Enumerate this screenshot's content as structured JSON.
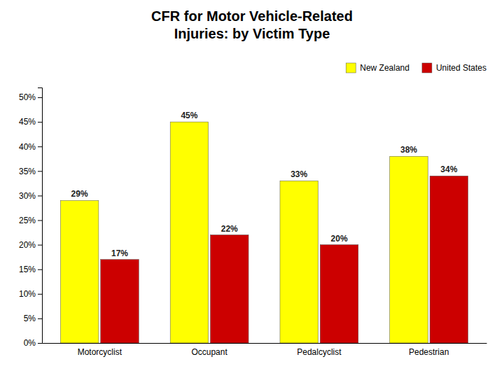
{
  "chart_data": {
    "type": "bar",
    "title": "CFR for Motor Vehicle-Related\nInjuries: by Victim Type",
    "categories": [
      "Motorcyclist",
      "Occupant",
      "Pedalcyclist",
      "Pedestrian"
    ],
    "series": [
      {
        "name": "New Zealand",
        "color": "#FFFF00",
        "values": [
          29,
          45,
          33,
          38
        ],
        "value_labels": [
          "29%",
          "45%",
          "33%",
          "38%"
        ]
      },
      {
        "name": "United States",
        "color": "#CC0000",
        "values": [
          17,
          22,
          20,
          34
        ],
        "value_labels": [
          "17%",
          "22%",
          "20%",
          "34%"
        ]
      }
    ],
    "ylim": [
      0,
      52
    ],
    "yticks": [
      {
        "value": 0,
        "label": "0%"
      },
      {
        "value": 5,
        "label": "5%"
      },
      {
        "value": 10,
        "label": "10%"
      },
      {
        "value": 15,
        "label": "15%"
      },
      {
        "value": 20,
        "label": "20%"
      },
      {
        "value": 25,
        "label": "25%"
      },
      {
        "value": 30,
        "label": "30%"
      },
      {
        "value": 35,
        "label": "35%"
      },
      {
        "value": 40,
        "label": "40%"
      },
      {
        "value": 45,
        "label": "45%"
      },
      {
        "value": 50,
        "label": "50%"
      }
    ],
    "grid": false,
    "legend": "upper right",
    "data_labels": true
  }
}
